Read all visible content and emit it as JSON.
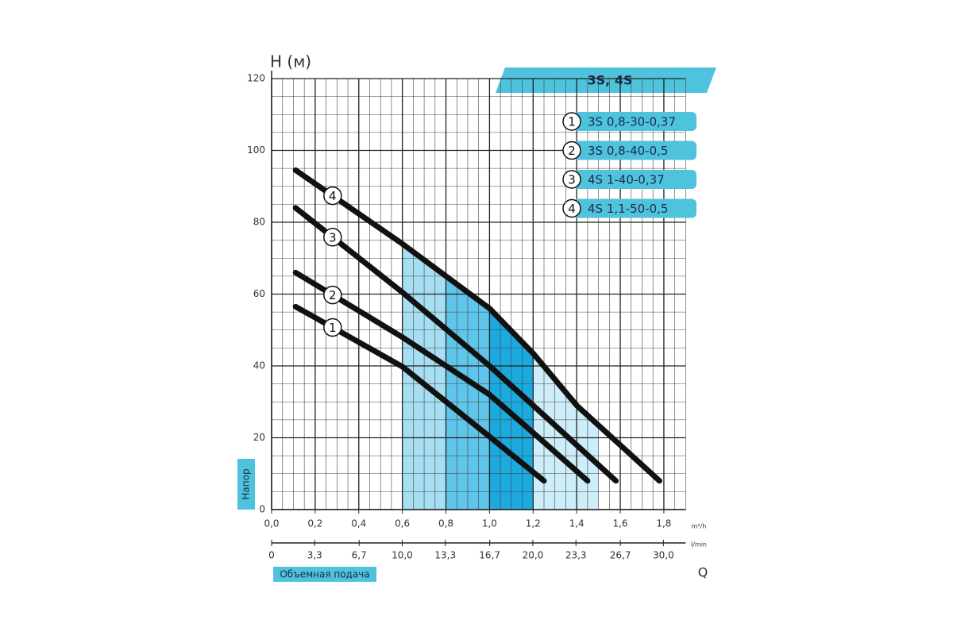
{
  "chart_data": {
    "type": "line",
    "title": "3S, 4S",
    "y_label": "H (м)",
    "y_axis_title": "Напор",
    "x_label": "Q",
    "x2_label": "Объемная подача",
    "x_unit": "m³/h",
    "x2_unit": "l/min",
    "xlim": [
      0,
      1.9
    ],
    "xticks": [
      {
        "value": 0,
        "label": "0,0"
      },
      {
        "value": 0.2,
        "label": "0,2"
      },
      {
        "value": 0.4,
        "label": "0,4"
      },
      {
        "value": 0.6,
        "label": "0,6"
      },
      {
        "value": 0.8,
        "label": "0,8"
      },
      {
        "value": 1.0,
        "label": "1,0"
      },
      {
        "value": 1.2,
        "label": "1,2"
      },
      {
        "value": 1.4,
        "label": "1,4"
      },
      {
        "value": 1.6,
        "label": "1,6"
      },
      {
        "value": 1.8,
        "label": "1,8"
      }
    ],
    "x2lim": [
      0,
      31.7
    ],
    "x2ticks": [
      0,
      {
        "value": 3.3,
        "label": "3,3"
      },
      {
        "value": 6.7,
        "label": "6,7"
      },
      {
        "value": 10.0,
        "label": "10,0"
      },
      {
        "value": 13.3,
        "label": "13,3"
      },
      {
        "value": 16.7,
        "label": "16,7"
      },
      {
        "value": 20.0,
        "label": "20,0"
      },
      {
        "value": 23.3,
        "label": "23,3"
      },
      {
        "value": 26.7,
        "label": "26,7"
      },
      {
        "value": 30.0,
        "label": "30,0"
      }
    ],
    "ylim": [
      0,
      120
    ],
    "yticks": [
      0,
      20,
      40,
      60,
      80,
      100,
      120
    ],
    "grid": true,
    "minor_grid": {
      "x": 0.05,
      "y": 5
    },
    "highlight": {
      "edges": [
        0.6,
        0.8,
        1.0,
        1.2,
        1.5
      ],
      "colors": [
        "#a6def2",
        "#5fc5ea",
        "#1ca9de",
        "#cdedf8"
      ]
    },
    "series": [
      {
        "name": "3S 0,8-30-0,37",
        "label": "1",
        "color": "#111111",
        "x": [
          0.11,
          0.6,
          1.0,
          1.25
        ],
        "values": [
          56.5,
          39.8,
          20.3,
          8
        ]
      },
      {
        "name": "3S 0,8-40-0,5",
        "label": "2",
        "color": "#111111",
        "x": [
          0.11,
          0.6,
          1.0,
          1.2,
          1.45
        ],
        "values": [
          66,
          48,
          32,
          21.4,
          8
        ]
      },
      {
        "name": "4S 1-40-0,37",
        "label": "3",
        "color": "#111111",
        "x": [
          0.11,
          0.6,
          1.0,
          1.2,
          1.58
        ],
        "values": [
          84,
          60.5,
          40,
          29,
          8
        ]
      },
      {
        "name": "4S 1,1-50-0,5",
        "label": "4",
        "color": "#111111",
        "x": [
          0.11,
          0.6,
          1.0,
          1.2,
          1.4,
          1.78
        ],
        "values": [
          94.5,
          74,
          56,
          43.5,
          29,
          8
        ]
      }
    ]
  }
}
